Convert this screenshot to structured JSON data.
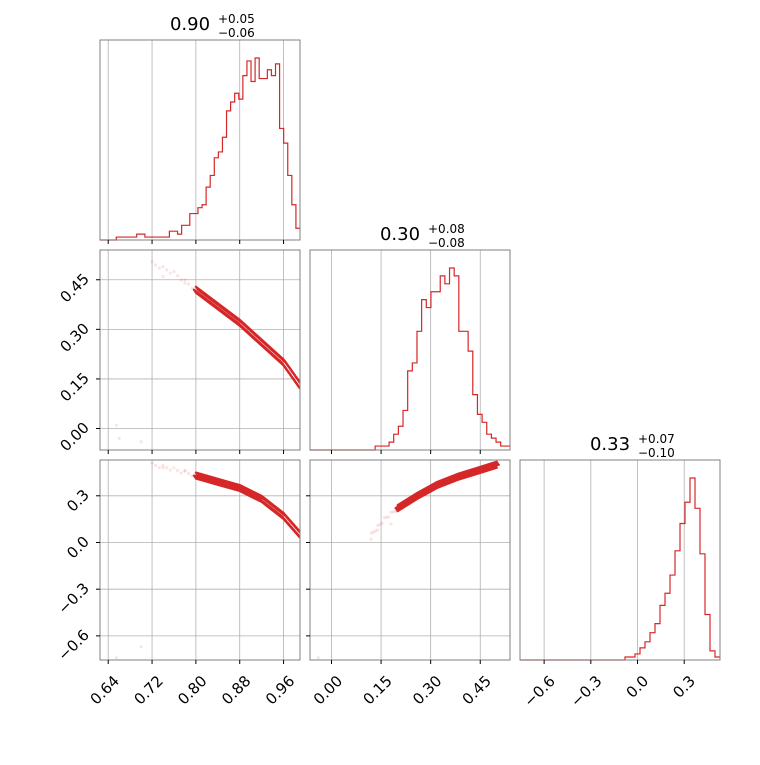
{
  "colors": {
    "series": "#d62728",
    "grid": "#b0b0b0",
    "frame": "#808080"
  },
  "chart_data": {
    "type": "corner",
    "parameters": [
      {
        "title": {
          "median": "0.90",
          "plus": "+0.05",
          "minus": "−0.06"
        },
        "range": [
          0.625,
          0.99
        ],
        "ticks": [
          0.64,
          0.72,
          0.8,
          0.88,
          0.96
        ],
        "tick_labels": [
          "0.64",
          "0.72",
          "0.80",
          "0.88",
          "0.96"
        ],
        "hist": {
          "x_start": 0.625,
          "x_end": 0.99,
          "counts": [
            0,
            0,
            0,
            0,
            1,
            1,
            1,
            1,
            1,
            2,
            2,
            1,
            1,
            1,
            1,
            1,
            1,
            3,
            3,
            2,
            5,
            5,
            9,
            9,
            11,
            12,
            18,
            22,
            28,
            30,
            35,
            44,
            47,
            50,
            48,
            56,
            61,
            54,
            62,
            55,
            55,
            58,
            56,
            60,
            38,
            33,
            22,
            12,
            4
          ]
        }
      },
      {
        "title": {
          "median": "0.30",
          "plus": "+0.08",
          "minus": "−0.08"
        },
        "range": [
          -0.065,
          0.54
        ],
        "ticks": [
          0.0,
          0.15,
          0.3,
          0.45
        ],
        "tick_labels": [
          "0.00",
          "0.15",
          "0.30",
          "0.45"
        ],
        "hist": {
          "x_start": -0.065,
          "x_end": 0.54,
          "counts": [
            0,
            0,
            0,
            0,
            0,
            0,
            0,
            0,
            0,
            0,
            0,
            0,
            0,
            0,
            1,
            1,
            1,
            2,
            4,
            6,
            10,
            20,
            22,
            30,
            38,
            36,
            40,
            40,
            44,
            42,
            46,
            44,
            30,
            30,
            25,
            14,
            9,
            7,
            4,
            3,
            2,
            1,
            1
          ]
        }
      },
      {
        "title": {
          "median": "0.33",
          "plus": "+0.07",
          "minus": "−0.10"
        },
        "range": [
          -0.755,
          0.53
        ],
        "ticks": [
          -0.6,
          -0.3,
          0.0,
          0.3
        ],
        "tick_labels": [
          "−0.6",
          "−0.3",
          "0.0",
          "0.3"
        ],
        "hist": {
          "x_start": -0.755,
          "x_end": 0.53,
          "counts": [
            0,
            0,
            0,
            0,
            0,
            0,
            0,
            0,
            0,
            0,
            0,
            0,
            0,
            0,
            0,
            0,
            0,
            0,
            0,
            0,
            0,
            1,
            1,
            2,
            4,
            6,
            9,
            12,
            18,
            22,
            28,
            36,
            45,
            52,
            60,
            50,
            35,
            15,
            3,
            1
          ]
        }
      }
    ],
    "pairs": [
      {
        "x_param": 0,
        "y_param": 1,
        "curve": [
          [
            0.72,
            0.5
          ],
          [
            0.76,
            0.47
          ],
          [
            0.8,
            0.42
          ],
          [
            0.84,
            0.37
          ],
          [
            0.88,
            0.32
          ],
          [
            0.92,
            0.26
          ],
          [
            0.96,
            0.2
          ],
          [
            0.99,
            0.13
          ]
        ],
        "outliers": [
          [
            0.655,
            0.01
          ],
          [
            0.66,
            -0.03
          ],
          [
            0.7,
            -0.04
          ],
          [
            0.74,
            0.46
          ],
          [
            0.78,
            0.44
          ],
          [
            0.82,
            0.4
          ]
        ]
      },
      {
        "x_param": 0,
        "y_param": 2,
        "curve": [
          [
            0.72,
            0.5
          ],
          [
            0.76,
            0.47
          ],
          [
            0.8,
            0.43
          ],
          [
            0.84,
            0.39
          ],
          [
            0.88,
            0.35
          ],
          [
            0.92,
            0.28
          ],
          [
            0.96,
            0.17
          ],
          [
            0.99,
            0.05
          ]
        ],
        "outliers": [
          [
            0.655,
            -0.74
          ],
          [
            0.7,
            -0.67
          ],
          [
            0.74,
            0.48
          ],
          [
            0.78,
            0.46
          ],
          [
            0.82,
            0.43
          ]
        ]
      },
      {
        "x_param": 1,
        "y_param": 2,
        "curve": [
          [
            0.12,
            0.05
          ],
          [
            0.16,
            0.15
          ],
          [
            0.2,
            0.22
          ],
          [
            0.26,
            0.3
          ],
          [
            0.32,
            0.37
          ],
          [
            0.38,
            0.42
          ],
          [
            0.44,
            0.46
          ],
          [
            0.5,
            0.5
          ]
        ],
        "outliers": [
          [
            -0.04,
            -0.74
          ],
          [
            0.12,
            0.02
          ],
          [
            0.14,
            0.08
          ],
          [
            0.18,
            0.12
          ]
        ]
      }
    ]
  }
}
